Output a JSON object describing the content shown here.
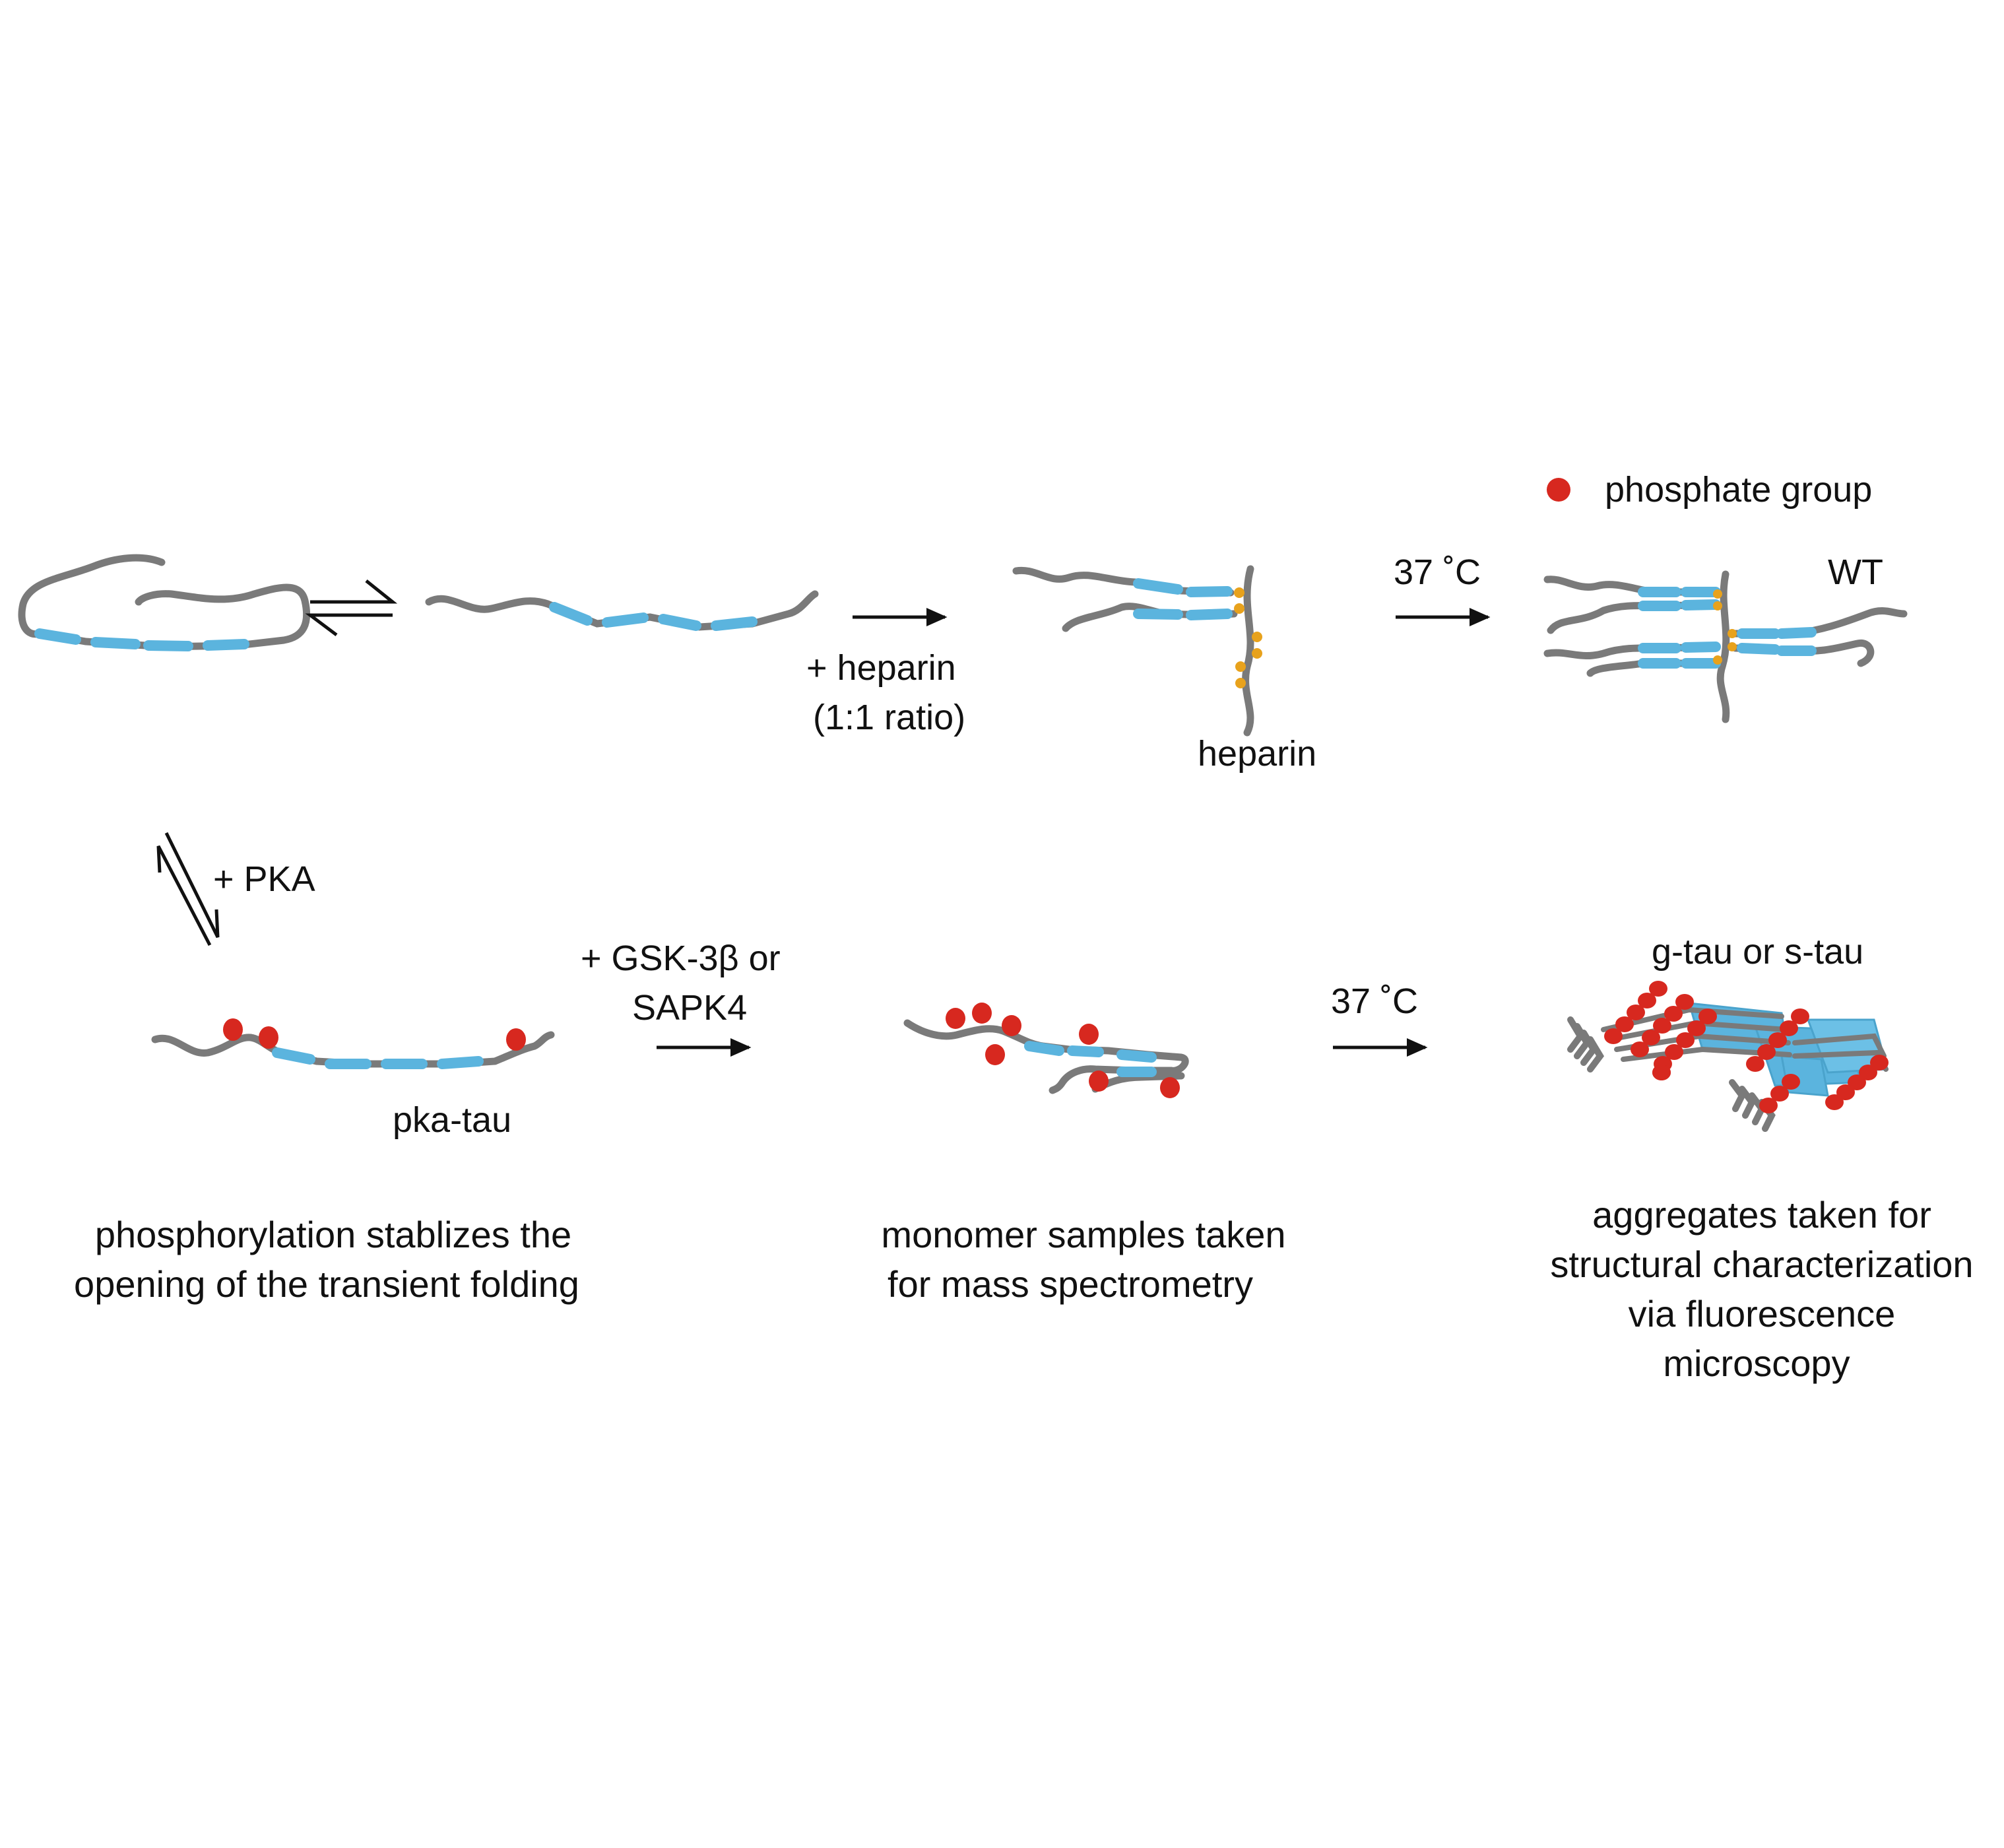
{
  "labels": {
    "phosphate_legend": "phosphate group",
    "heparin_reagent_line1": "+ heparin",
    "heparin_reagent_line2": "(1:1 ratio)",
    "heparin": "heparin",
    "temp_top": "37 ˚C",
    "wt": "WT",
    "pka": "+ PKA",
    "gsk_line1": "+ GSK-3β or",
    "gsk_line2": "SAPK4",
    "pka_tau": "pka-tau",
    "temp_bottom": "37 ˚C",
    "gtau_stau": "g-tau or s-tau",
    "caption_left_line1": "phosphorylation stablizes the",
    "caption_left_line2": "opening of the transient folding",
    "caption_mid_line1": "monomer samples taken",
    "caption_mid_line2": "for mass spectrometry",
    "caption_right_line1": "aggregates taken for",
    "caption_right_line2": "structural characterization",
    "caption_right_line3": "via fluorescence",
    "caption_right_line4": "microscopy"
  },
  "colors": {
    "chain": "#7a7a7a",
    "segment": "#5bb4de",
    "phosphate": "#d7281f",
    "heparin_site": "#e8a21c",
    "arrow": "#111111"
  }
}
